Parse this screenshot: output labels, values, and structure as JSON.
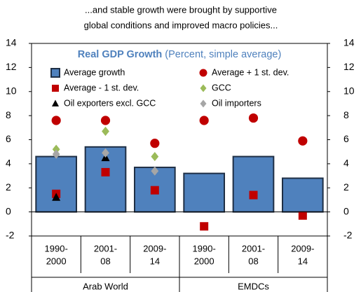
{
  "chart_data": {
    "type": "bar",
    "title": [
      "...and stable growth were brought by supportive",
      "global conditions and improved macro policies..."
    ],
    "inner_title": "Real GDP Growth",
    "inner_subtitle": "(Percent, simple average)",
    "categories": [
      [
        "1990-",
        "2000"
      ],
      [
        "2001-",
        "08"
      ],
      [
        "2009-",
        "14"
      ],
      [
        "1990-",
        "2000"
      ],
      [
        "2001-",
        "08"
      ],
      [
        "2009-",
        "14"
      ]
    ],
    "groups": [
      "Arab World",
      "EMDCs"
    ],
    "series": [
      {
        "name": "Average growth",
        "kind": "bar",
        "color": "#4f81bd",
        "values": [
          4.6,
          5.4,
          3.7,
          3.2,
          4.6,
          2.8
        ]
      },
      {
        "name": "Average + 1 st. dev.",
        "kind": "circle",
        "color": "#c00000",
        "values": [
          7.6,
          7.6,
          5.7,
          7.6,
          7.8,
          5.9
        ]
      },
      {
        "name": "Average - 1 st. dev.",
        "kind": "square",
        "color": "#c00000",
        "values": [
          1.5,
          3.3,
          1.8,
          -1.2,
          1.4,
          -0.3
        ]
      },
      {
        "name": "GCC",
        "kind": "diamond",
        "color": "#9bbb59",
        "values": [
          5.2,
          6.7,
          4.6,
          null,
          null,
          null
        ]
      },
      {
        "name": "Oil exporters  excl. GCC",
        "kind": "triangle",
        "color": "#000000",
        "values": [
          1.2,
          4.5,
          null,
          null,
          null,
          null
        ]
      },
      {
        "name": "Oil importers",
        "kind": "diamond",
        "color": "#a6a6a6",
        "values": [
          4.8,
          4.9,
          3.4,
          null,
          null,
          null
        ]
      }
    ],
    "ylim": [
      -2,
      14
    ],
    "yticks": [
      -2,
      0,
      2,
      4,
      6,
      8,
      10,
      12,
      14
    ]
  }
}
